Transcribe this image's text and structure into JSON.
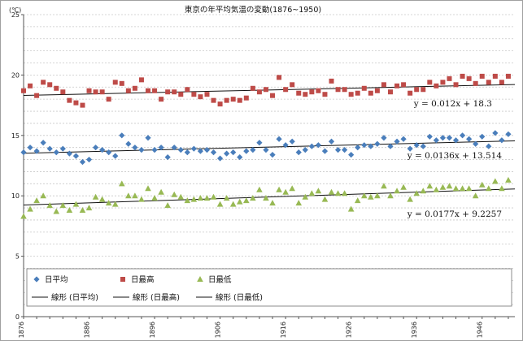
{
  "chart_data": {
    "type": "scatter",
    "title": "東京の年平均気温の変動(1876~1950)",
    "ylabel": "(℃)",
    "xlabel": "",
    "xlim": [
      1876,
      1951
    ],
    "ylim": [
      0,
      25
    ],
    "yticks": [
      0,
      5,
      10,
      15,
      20,
      25
    ],
    "xticks": [
      1876,
      1886,
      1896,
      1906,
      1916,
      1926,
      1936,
      1946
    ],
    "grid": true,
    "legend_position": "bottom-left",
    "series": [
      {
        "name": "日平均",
        "marker": "diamond",
        "color": "#4a7ebb",
        "x": [
          1876,
          1877,
          1878,
          1879,
          1880,
          1881,
          1882,
          1883,
          1884,
          1885,
          1886,
          1887,
          1888,
          1889,
          1890,
          1891,
          1892,
          1893,
          1894,
          1895,
          1896,
          1897,
          1898,
          1899,
          1900,
          1901,
          1902,
          1903,
          1904,
          1905,
          1906,
          1907,
          1908,
          1909,
          1910,
          1911,
          1912,
          1913,
          1914,
          1915,
          1916,
          1917,
          1918,
          1919,
          1920,
          1921,
          1922,
          1923,
          1924,
          1925,
          1926,
          1927,
          1928,
          1929,
          1930,
          1931,
          1932,
          1933,
          1934,
          1935,
          1936,
          1937,
          1938,
          1939,
          1940,
          1941,
          1942,
          1943,
          1944,
          1945,
          1946,
          1947,
          1948,
          1949,
          1950
        ],
        "y": [
          13.6,
          14.0,
          13.7,
          14.4,
          13.9,
          13.6,
          13.9,
          13.5,
          13.3,
          12.8,
          13.0,
          14.0,
          13.8,
          13.6,
          13.3,
          15.0,
          14.3,
          14.0,
          13.8,
          14.8,
          13.8,
          14.0,
          13.2,
          14.0,
          13.8,
          13.6,
          13.9,
          13.7,
          13.8,
          13.6,
          13.1,
          13.5,
          13.6,
          13.2,
          13.7,
          13.8,
          14.4,
          13.8,
          13.4,
          14.7,
          14.2,
          14.5,
          13.6,
          13.8,
          14.1,
          14.2,
          13.7,
          14.5,
          13.8,
          13.8,
          13.4,
          14.0,
          14.2,
          14.1,
          14.3,
          14.8,
          14.1,
          14.5,
          14.7,
          13.9,
          14.2,
          14.1,
          14.9,
          14.6,
          14.8,
          14.8,
          14.6,
          15.0,
          14.7,
          14.3,
          14.9,
          14.1,
          15.2,
          14.6,
          15.1
        ]
      },
      {
        "name": "日最高",
        "marker": "square",
        "color": "#be4b48",
        "x": [
          1876,
          1877,
          1878,
          1879,
          1880,
          1881,
          1882,
          1883,
          1884,
          1885,
          1886,
          1887,
          1888,
          1889,
          1890,
          1891,
          1892,
          1893,
          1894,
          1895,
          1896,
          1897,
          1898,
          1899,
          1900,
          1901,
          1902,
          1903,
          1904,
          1905,
          1906,
          1907,
          1908,
          1909,
          1910,
          1911,
          1912,
          1913,
          1914,
          1915,
          1916,
          1917,
          1918,
          1919,
          1920,
          1921,
          1922,
          1923,
          1924,
          1925,
          1926,
          1927,
          1928,
          1929,
          1930,
          1931,
          1932,
          1933,
          1934,
          1935,
          1936,
          1937,
          1938,
          1939,
          1940,
          1941,
          1942,
          1943,
          1944,
          1945,
          1946,
          1947,
          1948,
          1949,
          1950
        ],
        "y": [
          18.7,
          19.1,
          18.3,
          19.4,
          19.2,
          18.9,
          18.6,
          17.9,
          17.7,
          17.5,
          18.7,
          18.6,
          18.6,
          18.0,
          19.4,
          19.3,
          18.7,
          18.9,
          19.6,
          18.7,
          18.7,
          18.0,
          18.6,
          18.6,
          18.4,
          18.8,
          18.4,
          18.2,
          18.4,
          17.9,
          17.6,
          17.9,
          18.0,
          17.9,
          18.1,
          18.9,
          18.6,
          18.8,
          18.3,
          19.8,
          18.8,
          19.2,
          18.5,
          18.4,
          18.6,
          18.7,
          18.4,
          19.5,
          18.8,
          18.8,
          18.4,
          18.5,
          18.9,
          18.5,
          18.7,
          19.2,
          18.6,
          19.1,
          19.2,
          18.5,
          18.8,
          18.8,
          19.4,
          19.1,
          19.4,
          19.7,
          19.2,
          19.9,
          19.7,
          19.3,
          19.9,
          19.4,
          19.9,
          19.4,
          19.9
        ]
      },
      {
        "name": "日最低",
        "marker": "triangle",
        "color": "#98b954",
        "x": [
          1876,
          1877,
          1878,
          1879,
          1880,
          1881,
          1882,
          1883,
          1884,
          1885,
          1886,
          1887,
          1888,
          1889,
          1890,
          1891,
          1892,
          1893,
          1894,
          1895,
          1896,
          1897,
          1898,
          1899,
          1900,
          1901,
          1902,
          1903,
          1904,
          1905,
          1906,
          1907,
          1908,
          1909,
          1910,
          1911,
          1912,
          1913,
          1914,
          1915,
          1916,
          1917,
          1918,
          1919,
          1920,
          1921,
          1922,
          1923,
          1924,
          1925,
          1926,
          1927,
          1928,
          1929,
          1930,
          1931,
          1932,
          1933,
          1934,
          1935,
          1936,
          1937,
          1938,
          1939,
          1940,
          1941,
          1942,
          1943,
          1944,
          1945,
          1946,
          1947,
          1948,
          1949,
          1950
        ],
        "y": [
          8.3,
          8.9,
          9.6,
          10.0,
          9.2,
          8.7,
          9.2,
          8.8,
          9.3,
          8.8,
          9.0,
          9.9,
          9.7,
          9.4,
          9.3,
          11.0,
          10.0,
          10.0,
          9.7,
          10.6,
          9.8,
          10.3,
          9.2,
          10.1,
          9.9,
          9.6,
          9.7,
          9.8,
          9.8,
          9.9,
          9.3,
          9.8,
          9.3,
          9.5,
          9.6,
          9.8,
          10.5,
          9.8,
          9.4,
          10.5,
          10.3,
          10.6,
          9.4,
          9.9,
          10.2,
          10.4,
          9.7,
          10.3,
          10.2,
          10.2,
          8.9,
          9.6,
          10.0,
          9.9,
          10.0,
          10.8,
          10.0,
          10.4,
          10.7,
          9.7,
          10.2,
          10.4,
          10.8,
          10.5,
          10.7,
          10.8,
          10.6,
          10.6,
          10.6,
          10.0,
          10.9,
          10.6,
          11.2,
          10.6,
          11.3
        ]
      }
    ],
    "trendlines": [
      {
        "name": "線形 (日平均)",
        "slope": 0.0136,
        "intercept": 13.514,
        "equation": "y = 0.0136x + 13.514"
      },
      {
        "name": "線形 (日最高)",
        "slope": 0.012,
        "intercept": 18.3,
        "equation": "y = 0.012x + 18.3"
      },
      {
        "name": "線形 (日最低)",
        "slope": 0.0177,
        "intercept": 9.2257,
        "equation": "y = 0.0177x + 9.2257"
      }
    ]
  }
}
